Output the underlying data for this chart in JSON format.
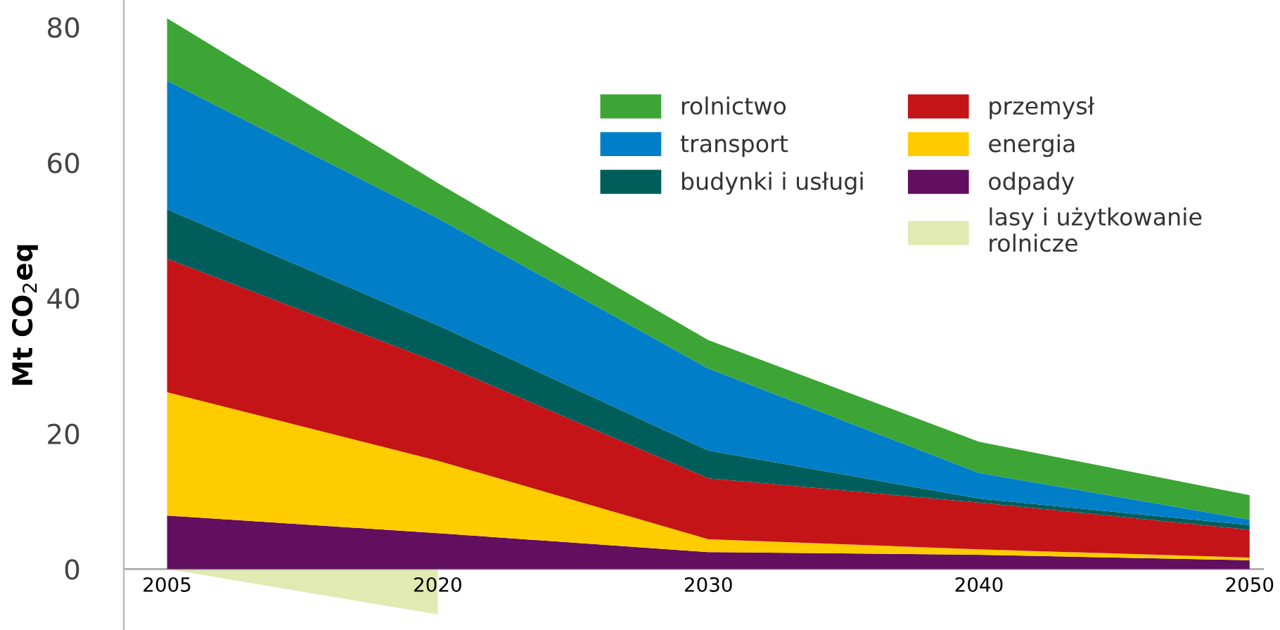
{
  "chart_data": [
    {
      "type": "area",
      "stacked": true,
      "ylabel": "Mt CO$_{2}$eq",
      "categories": [
        "2005",
        "2020",
        "2030",
        "2040",
        "2050"
      ],
      "series": [
        {
          "name": "odpady",
          "color": "#610f5e",
          "values": [
            7.9,
            5.3,
            2.5,
            2.1,
            1.3
          ]
        },
        {
          "name": "energia",
          "color": "#ffcc00",
          "values": [
            18.2,
            10.7,
            1.9,
            0.8,
            0.4
          ]
        },
        {
          "name": "przemysł",
          "color": "#c41418",
          "values": [
            19.7,
            14.5,
            9.0,
            6.9,
            4.1
          ]
        },
        {
          "name": "budynki i usługi",
          "color": "#005e5a",
          "values": [
            7.3,
            5.5,
            4.1,
            0.6,
            0.7
          ]
        },
        {
          "name": "transport",
          "color": "#007fc8",
          "values": [
            19.0,
            15.8,
            12.1,
            3.8,
            0.8
          ]
        },
        {
          "name": "rolnictwo",
          "color": "#3da535",
          "values": [
            9.2,
            5.2,
            4.2,
            4.6,
            3.6
          ]
        }
      ],
      "ylim": [
        -9,
        84
      ],
      "yticks": [
        0,
        20,
        40,
        60,
        80
      ],
      "legend": "top right",
      "tick_labels": "y"
    },
    {
      "type": "area",
      "tick_labels": "x",
      "ylim": [
        -9,
        84
      ],
      "categories": [
        "2005",
        "2020",
        "2030",
        "2040",
        "2050"
      ],
      "series": [
        {
          "name": "lasy i użytkowanie\nrolnicze",
          "color": "#e1eab2",
          "values": [
            0,
            -6.7,
            null,
            null,
            null
          ]
        }
      ]
    }
  ]
}
